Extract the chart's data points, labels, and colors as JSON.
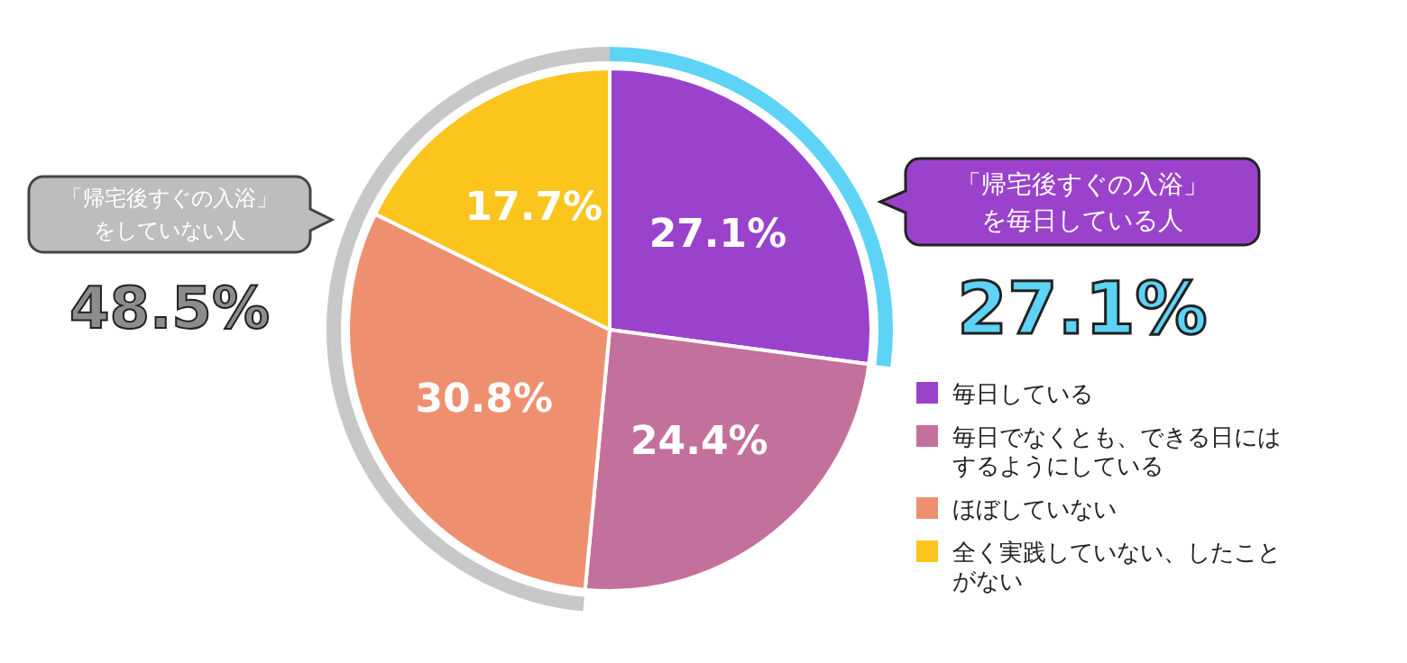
{
  "chart_data": {
    "type": "pie",
    "categories": [
      "毎日している",
      "毎日でなくとも、できる日にはするようにしている",
      "ほぼしていない",
      "全く実践していない、したことがない"
    ],
    "values": [
      27.1,
      24.4,
      30.8,
      17.7
    ],
    "colors": [
      "#9b42cc",
      "#c4709c",
      "#ee9070",
      "#fbc51e"
    ],
    "value_labels": [
      "27.1%",
      "24.4%",
      "30.8%",
      "17.7%"
    ],
    "legend": "right",
    "annotations": [
      "「帰宅後すぐの入浴」を毎日している人",
      "27.1%",
      "「帰宅後すぐの入浴」をしていない人",
      "48.5%"
    ]
  }
}
